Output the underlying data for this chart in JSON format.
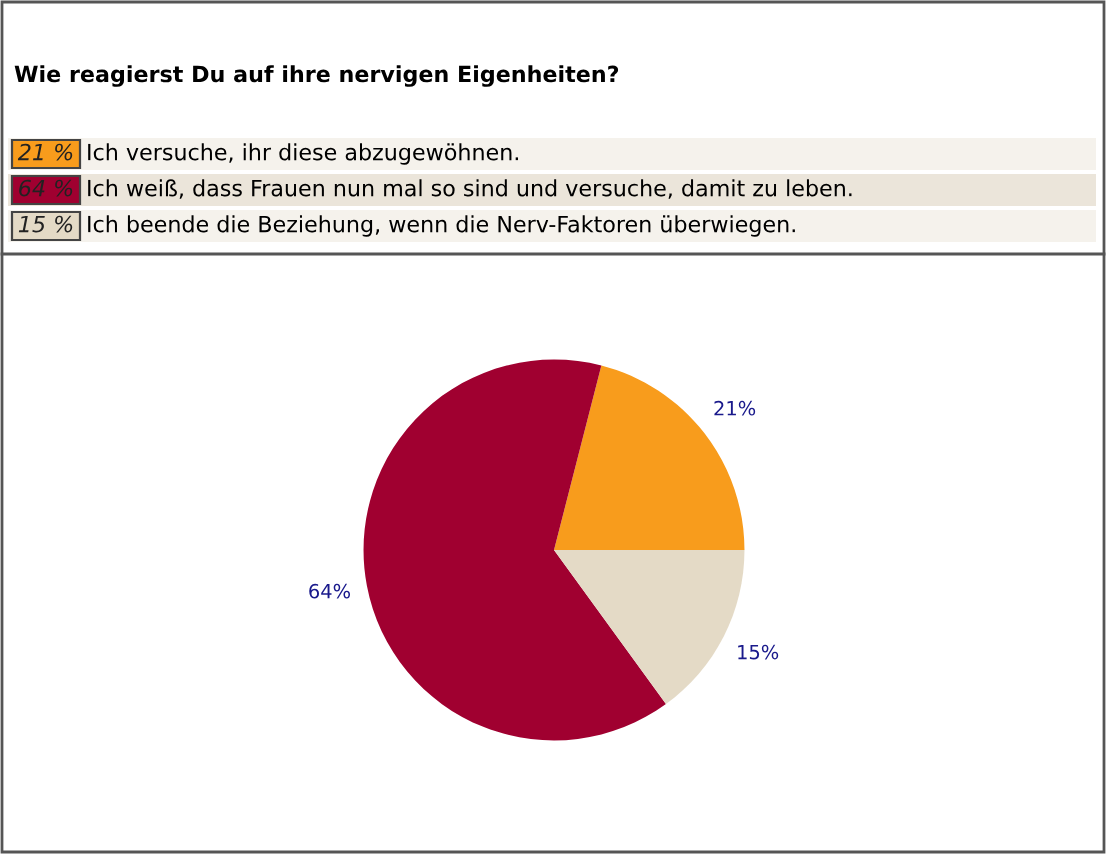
{
  "chart_data": {
    "type": "pie",
    "title": "Wie reagierst Du auf ihre nervigen Eigenheiten?",
    "categories": [
      "Ich versuche, ihr diese abzugewöhnen.",
      "Ich weiß, dass Frauen nun mal so sind und versuche, damit zu leben.",
      "Ich beende die Beziehung, wenn die Nerv-Faktoren überwiegen."
    ],
    "values": [
      21,
      64,
      15
    ],
    "colors": [
      "#f89c1c",
      "#a00030",
      "#e4dac6"
    ],
    "value_labels": [
      "21%",
      "64%",
      "15%"
    ],
    "annotations": [
      "21 %",
      "64 %",
      "15 %"
    ],
    "legend": "top"
  }
}
